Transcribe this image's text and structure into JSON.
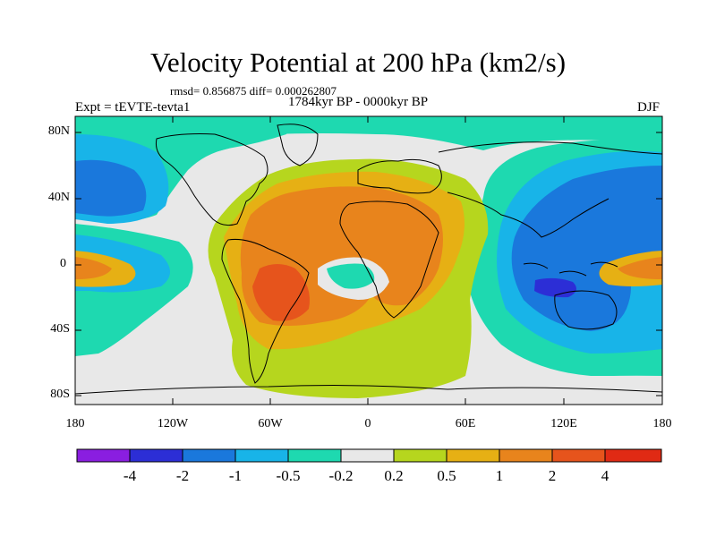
{
  "title": "Velocity Potential at 200 hPa (km2/s)",
  "stats": "rmsd= 0.856875 diff= 0.000262807",
  "period": "1784kyr BP - 0000kyr BP",
  "experiment": "Expt = tEVTE-tevta1",
  "season": "DJF",
  "lat_labels": [
    "80N",
    "40N",
    "0",
    "40S",
    "80S"
  ],
  "lon_labels": [
    "180",
    "120W",
    "60W",
    "0",
    "60E",
    "120E",
    "180"
  ],
  "colorbar": {
    "labels": [
      "-4",
      "-2",
      "-1",
      "-0.5",
      "-0.2",
      "0.2",
      "0.5",
      "1",
      "2",
      "4"
    ],
    "colors": [
      "#8a1ee0",
      "#2c2ed6",
      "#1a78dc",
      "#18b4e8",
      "#1ed9b0",
      "#e8e8e8",
      "#b6d61e",
      "#e6b014",
      "#e8841c",
      "#e6541c",
      "#e02a14"
    ]
  },
  "field_colors": {
    "neutral": "#e8e8e8",
    "teal": "#1ed9b0",
    "cyan": "#18b4e8",
    "blue": "#1a78dc",
    "darkblue": "#2c2ed6",
    "yellowgreen": "#b6d61e",
    "gold": "#e6b014",
    "orange": "#e8841c",
    "redorange": "#e6541c"
  }
}
